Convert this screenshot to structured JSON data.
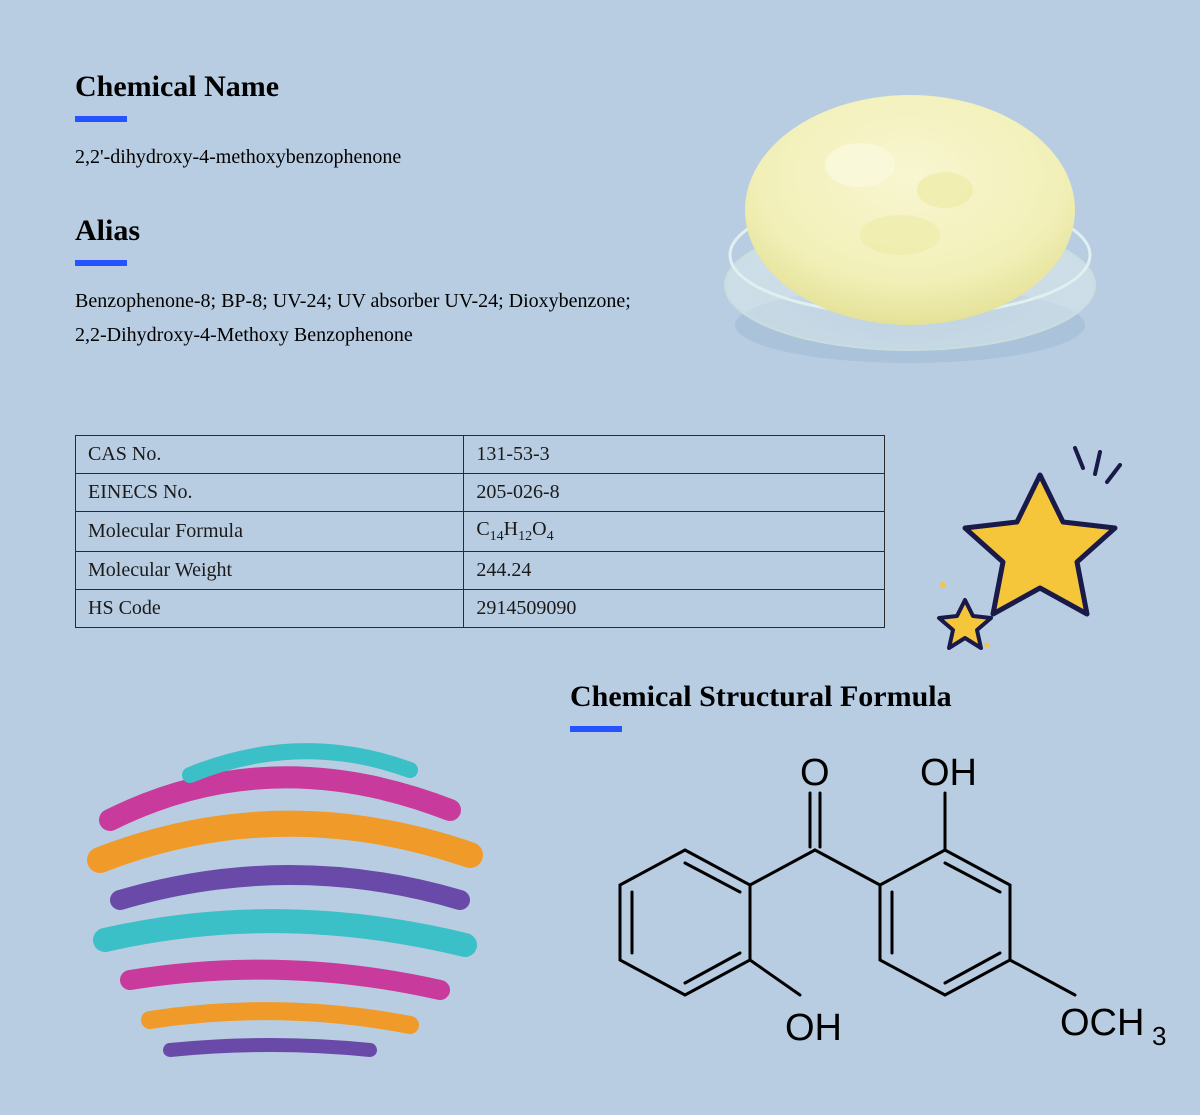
{
  "headings": {
    "chemical_name": "Chemical Name",
    "alias": "Alias",
    "structure": "Chemical Structural Formula"
  },
  "chemical_name_value": "2,2'-dihydroxy-4-methoxybenzophenone",
  "alias_value": "Benzophenone-8; BP-8; UV-24; UV absorber UV-24; Dioxybenzone; 2,2-Dihydroxy-4-Methoxy Benzophenone",
  "table": {
    "rows": [
      {
        "label": "CAS No.",
        "value": "131-53-3"
      },
      {
        "label": "EINECS No.",
        "value": "205-026-8"
      },
      {
        "label": "Molecular Formula",
        "value_html": "C<sub>14</sub>H<sub>12</sub>O<sub>4</sub>"
      },
      {
        "label": "Molecular Weight",
        "value": "244.24"
      },
      {
        "label": "HS Code",
        "value": "2914509090"
      }
    ]
  },
  "colors": {
    "background": "#b8cde2",
    "accent": "#2453ff",
    "text": "#000000",
    "table_border": "#2b2b2b",
    "powder_fill": "#f2f0b8",
    "powder_edge": "#e4e298",
    "dish_edge": "#d8e8e8",
    "star_fill": "#f6c63a",
    "star_stroke": "#1a1a4a",
    "paint_magenta": "#c83a9c",
    "paint_orange": "#f09a2a",
    "paint_teal": "#3ac0c6",
    "paint_purple": "#6a4aa8"
  },
  "structure": {
    "atoms": [
      "O",
      "OH",
      "OH",
      "OCH3"
    ],
    "stroke": "#000000",
    "stroke_width": 3,
    "font_size": 38
  }
}
